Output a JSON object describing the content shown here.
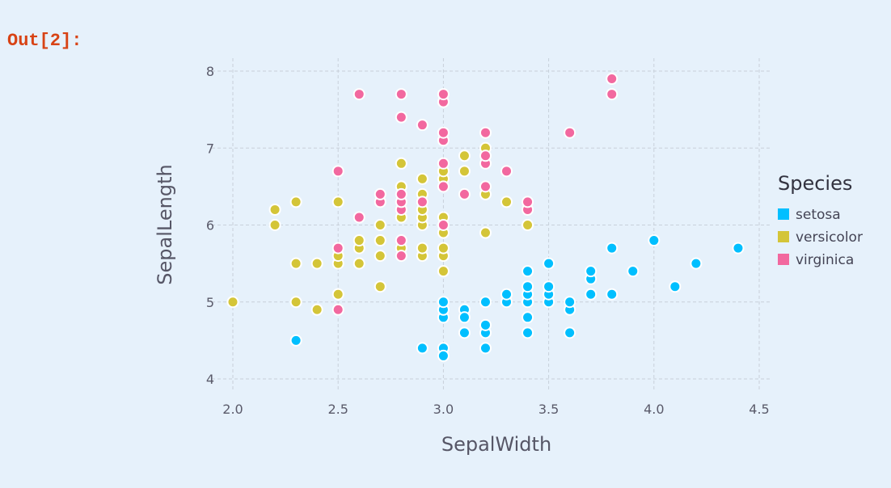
{
  "cell": {
    "prompt": "Out[2]:"
  },
  "chart_data": {
    "type": "scatter",
    "xlabel": "SepalWidth",
    "ylabel": "SepalLength",
    "xlim": [
      2.0,
      4.5
    ],
    "ylim": [
      4,
      8
    ],
    "xticks": [
      "2.0",
      "2.5",
      "3.0",
      "3.5",
      "4.0",
      "4.5"
    ],
    "yticks": [
      "4",
      "5",
      "6",
      "7",
      "8"
    ],
    "grid": true,
    "legend": {
      "title": "Species",
      "placement": "right"
    },
    "series": [
      {
        "name": "setosa",
        "color": "#00bfff",
        "points": [
          [
            2.3,
            4.5
          ],
          [
            2.9,
            4.4
          ],
          [
            3.0,
            4.4
          ],
          [
            3.0,
            4.3
          ],
          [
            3.0,
            4.8
          ],
          [
            3.0,
            4.9
          ],
          [
            3.0,
            5.0
          ],
          [
            3.1,
            4.9
          ],
          [
            3.1,
            4.8
          ],
          [
            3.1,
            4.6
          ],
          [
            3.2,
            4.4
          ],
          [
            3.2,
            4.6
          ],
          [
            3.2,
            4.7
          ],
          [
            3.2,
            5.0
          ],
          [
            3.3,
            5.0
          ],
          [
            3.3,
            5.1
          ],
          [
            3.4,
            4.6
          ],
          [
            3.4,
            4.8
          ],
          [
            3.4,
            5.0
          ],
          [
            3.4,
            5.1
          ],
          [
            3.4,
            5.2
          ],
          [
            3.4,
            5.4
          ],
          [
            3.5,
            5.0
          ],
          [
            3.5,
            5.1
          ],
          [
            3.5,
            5.2
          ],
          [
            3.5,
            5.5
          ],
          [
            3.6,
            4.6
          ],
          [
            3.6,
            4.9
          ],
          [
            3.6,
            5.0
          ],
          [
            3.7,
            5.1
          ],
          [
            3.7,
            5.3
          ],
          [
            3.7,
            5.4
          ],
          [
            3.8,
            5.1
          ],
          [
            3.8,
            5.7
          ],
          [
            3.9,
            5.4
          ],
          [
            4.0,
            5.8
          ],
          [
            4.1,
            5.2
          ],
          [
            4.2,
            5.5
          ],
          [
            4.4,
            5.7
          ]
        ]
      },
      {
        "name": "versicolor",
        "color": "#d4c538",
        "points": [
          [
            2.0,
            5.0
          ],
          [
            2.2,
            6.0
          ],
          [
            2.2,
            6.2
          ],
          [
            2.3,
            5.0
          ],
          [
            2.3,
            5.5
          ],
          [
            2.3,
            6.3
          ],
          [
            2.4,
            4.9
          ],
          [
            2.4,
            5.5
          ],
          [
            2.5,
            5.1
          ],
          [
            2.5,
            5.5
          ],
          [
            2.5,
            5.6
          ],
          [
            2.5,
            6.3
          ],
          [
            2.6,
            5.5
          ],
          [
            2.6,
            5.7
          ],
          [
            2.6,
            5.8
          ],
          [
            2.7,
            5.2
          ],
          [
            2.7,
            5.6
          ],
          [
            2.7,
            5.8
          ],
          [
            2.7,
            6.0
          ],
          [
            2.8,
            5.7
          ],
          [
            2.8,
            6.1
          ],
          [
            2.8,
            6.5
          ],
          [
            2.8,
            6.8
          ],
          [
            2.9,
            5.6
          ],
          [
            2.9,
            5.7
          ],
          [
            2.9,
            6.0
          ],
          [
            2.9,
            6.1
          ],
          [
            2.9,
            6.2
          ],
          [
            2.9,
            6.4
          ],
          [
            2.9,
            6.6
          ],
          [
            3.0,
            5.4
          ],
          [
            3.0,
            5.6
          ],
          [
            3.0,
            5.7
          ],
          [
            3.0,
            5.9
          ],
          [
            3.0,
            6.1
          ],
          [
            3.0,
            6.6
          ],
          [
            3.0,
            6.7
          ],
          [
            3.1,
            6.7
          ],
          [
            3.1,
            6.9
          ],
          [
            3.2,
            5.9
          ],
          [
            3.2,
            6.4
          ],
          [
            3.2,
            7.0
          ],
          [
            3.3,
            6.3
          ],
          [
            3.4,
            6.0
          ]
        ]
      },
      {
        "name": "virginica",
        "color": "#f2689f",
        "points": [
          [
            2.5,
            4.9
          ],
          [
            2.5,
            5.7
          ],
          [
            2.5,
            6.7
          ],
          [
            2.6,
            6.1
          ],
          [
            2.6,
            7.7
          ],
          [
            2.7,
            6.3
          ],
          [
            2.7,
            6.4
          ],
          [
            2.8,
            5.6
          ],
          [
            2.8,
            5.8
          ],
          [
            2.8,
            6.2
          ],
          [
            2.8,
            6.3
          ],
          [
            2.8,
            6.4
          ],
          [
            2.8,
            7.4
          ],
          [
            2.8,
            7.7
          ],
          [
            2.9,
            6.3
          ],
          [
            2.9,
            7.3
          ],
          [
            3.0,
            6.0
          ],
          [
            3.0,
            6.5
          ],
          [
            3.0,
            6.8
          ],
          [
            3.0,
            7.1
          ],
          [
            3.0,
            7.2
          ],
          [
            3.0,
            7.6
          ],
          [
            3.0,
            7.7
          ],
          [
            3.1,
            6.4
          ],
          [
            3.2,
            6.5
          ],
          [
            3.2,
            6.8
          ],
          [
            3.2,
            6.9
          ],
          [
            3.2,
            7.2
          ],
          [
            3.3,
            6.7
          ],
          [
            3.4,
            6.2
          ],
          [
            3.4,
            6.3
          ],
          [
            3.6,
            7.2
          ],
          [
            3.8,
            7.7
          ],
          [
            3.8,
            7.9
          ]
        ]
      }
    ]
  }
}
